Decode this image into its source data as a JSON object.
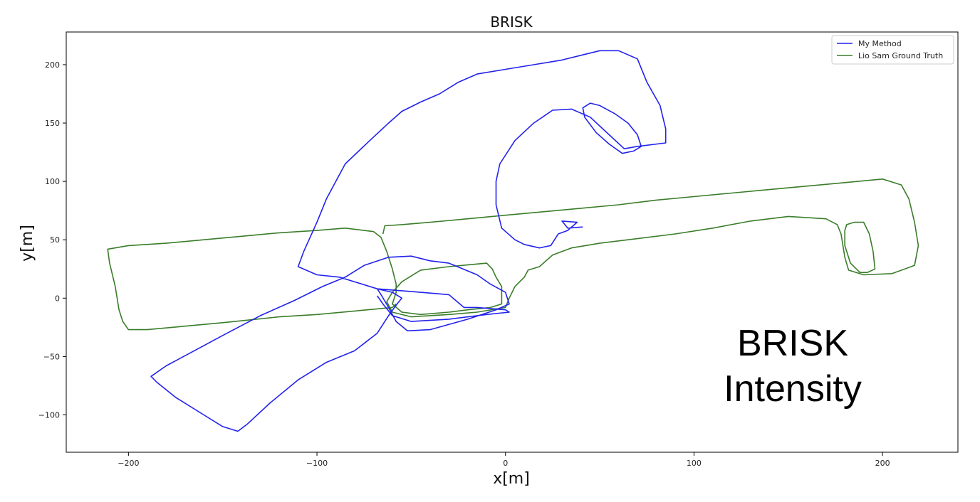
{
  "chart_data": {
    "type": "line",
    "title": "BRISK",
    "xlabel": "x[m]",
    "ylabel": "y[m]",
    "xlim": [
      -233,
      240
    ],
    "ylim": [
      -132,
      228
    ],
    "x_ticks": [
      -200,
      -100,
      0,
      100,
      200
    ],
    "y_ticks": [
      -100,
      -50,
      0,
      50,
      100,
      150,
      200
    ],
    "x_tick_labels": [
      "−200",
      "−100",
      "0",
      "100",
      "200"
    ],
    "y_tick_labels": [
      "−100",
      "−50",
      "0",
      "50",
      "100",
      "150",
      "200"
    ],
    "grid": false,
    "legend_position": "top-right",
    "annotation": [
      "BRISK",
      "Intensity"
    ],
    "series": [
      {
        "name": "My Method",
        "color": "#2222ee",
        "points": [
          [
            41,
            61
          ],
          [
            33,
            60
          ],
          [
            30,
            66
          ],
          [
            38,
            65
          ],
          [
            33,
            58
          ],
          [
            28,
            55
          ],
          [
            26,
            50
          ],
          [
            24,
            45
          ],
          [
            18,
            43
          ],
          [
            10,
            46
          ],
          [
            5,
            50
          ],
          [
            -2,
            60
          ],
          [
            -5,
            80
          ],
          [
            -5,
            100
          ],
          [
            -3,
            115
          ],
          [
            5,
            135
          ],
          [
            15,
            150
          ],
          [
            25,
            161
          ],
          [
            35,
            162
          ],
          [
            45,
            155
          ],
          [
            55,
            140
          ],
          [
            63,
            128
          ],
          [
            70,
            130
          ],
          [
            85,
            133
          ],
          [
            85,
            145
          ],
          [
            82,
            165
          ],
          [
            75,
            185
          ],
          [
            70,
            205
          ],
          [
            60,
            212
          ],
          [
            50,
            212
          ],
          [
            40,
            208
          ],
          [
            30,
            204
          ],
          [
            15,
            200
          ],
          [
            0,
            196
          ],
          [
            -15,
            192
          ],
          [
            -25,
            185
          ],
          [
            -35,
            175
          ],
          [
            -45,
            168
          ],
          [
            -55,
            160
          ],
          [
            -62,
            150
          ],
          [
            -72,
            135
          ],
          [
            -85,
            115
          ],
          [
            -95,
            85
          ],
          [
            -100,
            65
          ],
          [
            -107,
            40
          ],
          [
            -110,
            27
          ],
          [
            -100,
            20
          ],
          [
            -88,
            18
          ],
          [
            -78,
            13
          ],
          [
            -68,
            8
          ],
          [
            -60,
            5
          ],
          [
            -55,
            0
          ],
          [
            -58,
            -6
          ],
          [
            -62,
            -15
          ],
          [
            -68,
            -30
          ],
          [
            -80,
            -45
          ],
          [
            -95,
            -55
          ],
          [
            -110,
            -70
          ],
          [
            -125,
            -90
          ],
          [
            -137,
            -108
          ],
          [
            -142,
            -114
          ],
          [
            -150,
            -110
          ],
          [
            -160,
            -100
          ],
          [
            -175,
            -85
          ],
          [
            -185,
            -72
          ],
          [
            -188,
            -67
          ],
          [
            -180,
            -58
          ],
          [
            -165,
            -45
          ],
          [
            -150,
            -32
          ],
          [
            -130,
            -15
          ],
          [
            -112,
            -2
          ],
          [
            -97,
            10
          ],
          [
            -85,
            18
          ],
          [
            -75,
            28
          ],
          [
            -62,
            35
          ],
          [
            -50,
            36
          ],
          [
            -40,
            32
          ],
          [
            -30,
            30
          ],
          [
            -15,
            20
          ],
          [
            -8,
            12
          ],
          [
            0,
            5
          ],
          [
            2,
            -5
          ],
          [
            -5,
            -10
          ],
          [
            -20,
            -18
          ],
          [
            -40,
            -27
          ],
          [
            -52,
            -28
          ],
          [
            -58,
            -20
          ],
          [
            -62,
            -8
          ],
          [
            -66,
            3
          ],
          [
            -68,
            8
          ],
          [
            -45,
            5
          ],
          [
            -30,
            3
          ],
          [
            -22,
            -8
          ],
          [
            -15,
            -8
          ],
          [
            0,
            -10
          ],
          [
            2,
            -12
          ],
          [
            -10,
            -14
          ],
          [
            -30,
            -18
          ],
          [
            -50,
            -20
          ],
          [
            -60,
            -15
          ],
          [
            -65,
            -5
          ],
          [
            -68,
            2
          ]
        ],
        "loop": [
          [
            50,
            165
          ],
          [
            58,
            158
          ],
          [
            65,
            150
          ],
          [
            70,
            140
          ],
          [
            72,
            130
          ],
          [
            68,
            126
          ],
          [
            62,
            124
          ],
          [
            55,
            132
          ],
          [
            48,
            142
          ],
          [
            42,
            155
          ],
          [
            41,
            163
          ],
          [
            45,
            167
          ]
        ]
      },
      {
        "name": "Lio Sam Ground Truth",
        "color": "#3a7d2a",
        "points": [
          [
            -65,
            55
          ],
          [
            -64,
            62
          ],
          [
            -55,
            63
          ],
          [
            -40,
            65
          ],
          [
            -20,
            68
          ],
          [
            0,
            71
          ],
          [
            20,
            74
          ],
          [
            40,
            77
          ],
          [
            60,
            80
          ],
          [
            80,
            84
          ],
          [
            100,
            87
          ],
          [
            120,
            90
          ],
          [
            140,
            93
          ],
          [
            160,
            96
          ],
          [
            180,
            99
          ],
          [
            200,
            102
          ],
          [
            210,
            97
          ],
          [
            214,
            85
          ],
          [
            217,
            65
          ],
          [
            219,
            45
          ],
          [
            217,
            28
          ],
          [
            205,
            21
          ],
          [
            190,
            20
          ],
          [
            182,
            24
          ],
          [
            180,
            35
          ],
          [
            178,
            55
          ],
          [
            176,
            63
          ],
          [
            170,
            68
          ],
          [
            150,
            70
          ],
          [
            130,
            66
          ],
          [
            110,
            60
          ],
          [
            90,
            55
          ],
          [
            70,
            51
          ],
          [
            50,
            47
          ],
          [
            35,
            43
          ],
          [
            25,
            37
          ],
          [
            18,
            27
          ],
          [
            12,
            24
          ],
          [
            10,
            18
          ],
          [
            5,
            10
          ],
          [
            2,
            0
          ],
          [
            0,
            -8
          ],
          [
            -15,
            -12
          ],
          [
            -30,
            -14
          ],
          [
            -50,
            -16
          ],
          [
            -60,
            -12
          ],
          [
            -63,
            -3
          ],
          [
            -60,
            5
          ],
          [
            -55,
            14
          ],
          [
            -45,
            24
          ],
          [
            -30,
            27
          ],
          [
            -10,
            30
          ],
          [
            -7,
            25
          ],
          [
            -5,
            18
          ],
          [
            -2,
            10
          ],
          [
            -2,
            -5
          ],
          [
            -8,
            -8
          ],
          [
            -20,
            -10
          ],
          [
            -30,
            -12
          ],
          [
            -45,
            -14
          ],
          [
            -55,
            -12
          ],
          [
            -60,
            -5
          ],
          [
            -58,
            5
          ],
          [
            -58,
            12
          ],
          [
            -60,
            25
          ],
          [
            -63,
            40
          ],
          [
            -66,
            52
          ],
          [
            -70,
            57
          ],
          [
            -85,
            60
          ],
          [
            -100,
            58
          ],
          [
            -120,
            56
          ],
          [
            -140,
            53
          ],
          [
            -160,
            50
          ],
          [
            -180,
            47
          ],
          [
            -200,
            45
          ],
          [
            -211,
            42
          ],
          [
            -210,
            30
          ],
          [
            -207,
            10
          ],
          [
            -205,
            -10
          ],
          [
            -203,
            -20
          ],
          [
            -200,
            -27
          ],
          [
            -190,
            -27
          ],
          [
            -170,
            -24
          ],
          [
            -150,
            -21
          ],
          [
            -120,
            -16
          ],
          [
            -100,
            -14
          ],
          [
            -80,
            -11
          ],
          [
            -60,
            -8
          ],
          [
            -58,
            -5
          ]
        ],
        "loop": [
          [
            181,
            63
          ],
          [
            185,
            65
          ],
          [
            190,
            65
          ],
          [
            193,
            55
          ],
          [
            195,
            40
          ],
          [
            196,
            25
          ],
          [
            192,
            22
          ],
          [
            188,
            22
          ],
          [
            183,
            30
          ],
          [
            180,
            45
          ],
          [
            180,
            58
          ]
        ]
      }
    ]
  }
}
